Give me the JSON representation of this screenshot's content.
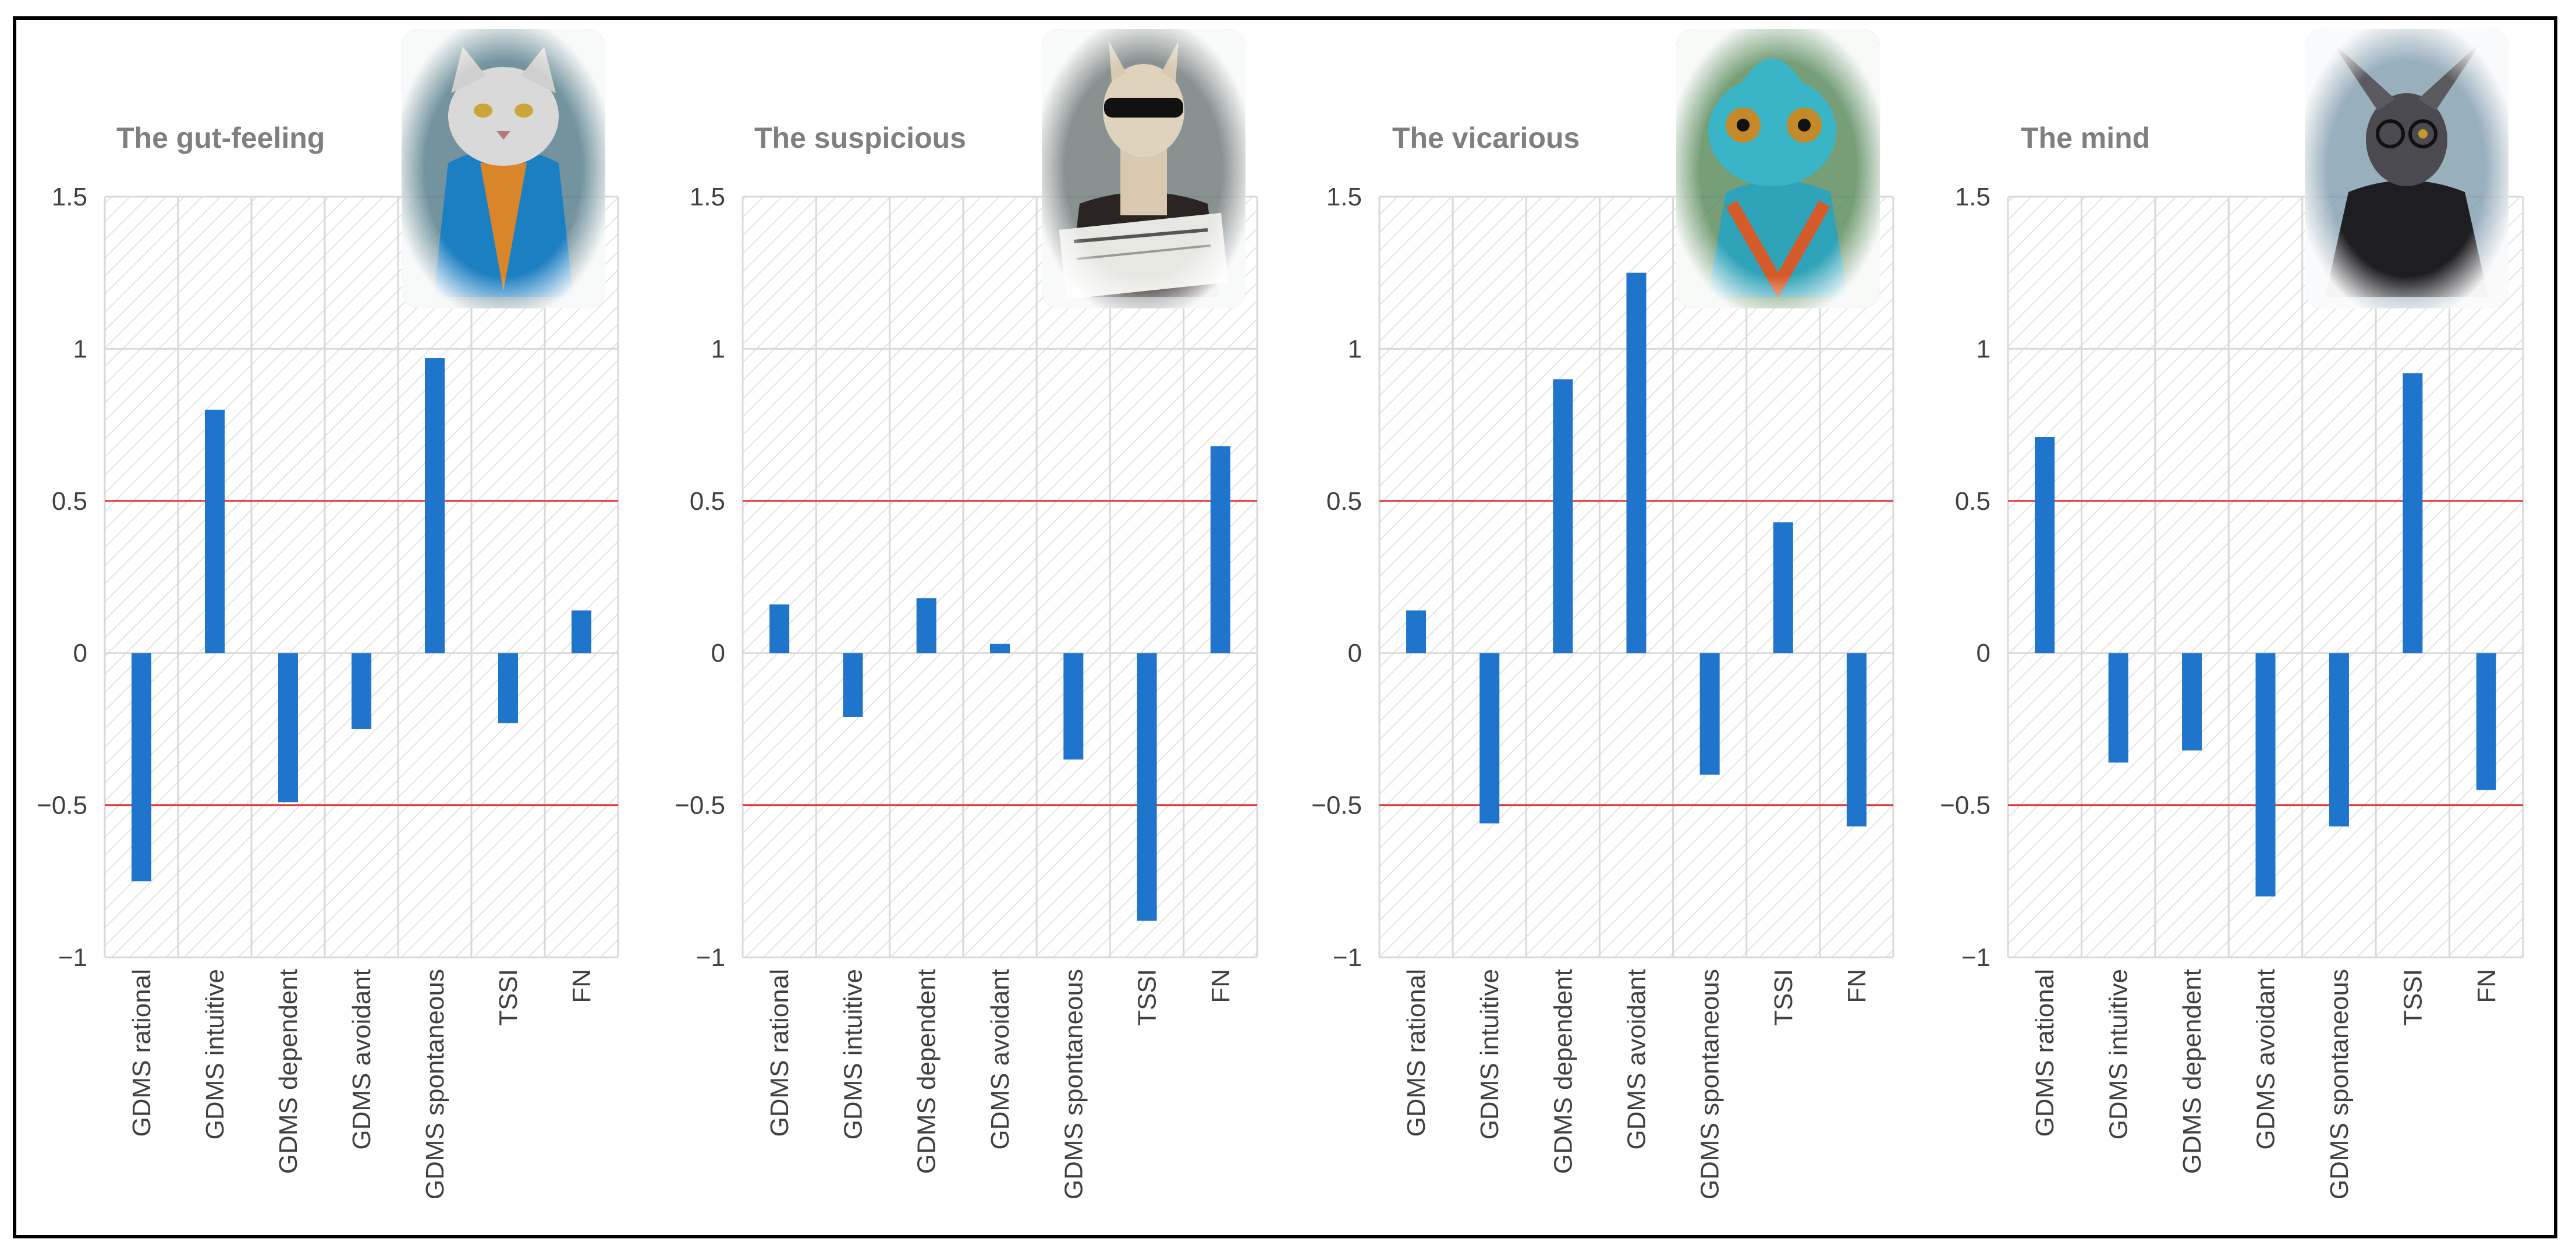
{
  "chart_data": [
    {
      "type": "bar",
      "title": "The gut-feeling",
      "mascot": "cat-wizard-icon",
      "categories": [
        "GDMS rational",
        "GDMS intuitive",
        "GDMS dependent",
        "GDMS avoidant",
        "GDMS spontaneous",
        "TSSI",
        "FN"
      ],
      "values": [
        -0.75,
        0.8,
        -0.49,
        -0.25,
        0.97,
        -0.23,
        0.14
      ],
      "ylim": [
        -1,
        1.5
      ],
      "yticks": [
        "−1",
        "−0.5",
        "0",
        "0.5",
        "1",
        "1.5"
      ],
      "ytick_values": [
        -1,
        -0.5,
        0,
        0.5,
        1,
        1.5
      ],
      "reference_lines": [
        0.5,
        -0.5
      ],
      "grid": true
    },
    {
      "type": "bar",
      "title": "The suspicious",
      "mascot": "llama-newspaper-icon",
      "categories": [
        "GDMS rational",
        "GDMS intuitive",
        "GDMS dependent",
        "GDMS avoidant",
        "GDMS spontaneous",
        "TSSI",
        "FN"
      ],
      "values": [
        0.16,
        -0.21,
        0.18,
        0.03,
        -0.35,
        -0.88,
        0.68
      ],
      "ylim": [
        -1,
        1.5
      ],
      "yticks": [
        "−1",
        "−0.5",
        "0",
        "0.5",
        "1",
        "1.5"
      ],
      "ytick_values": [
        -1,
        -0.5,
        0,
        0.5,
        1,
        1.5
      ],
      "reference_lines": [
        0.5,
        -0.5
      ],
      "grid": true
    },
    {
      "type": "bar",
      "title": "The vicarious",
      "mascot": "chameleon-icon",
      "categories": [
        "GDMS rational",
        "GDMS intuitive",
        "GDMS dependent",
        "GDMS avoidant",
        "GDMS spontaneous",
        "TSSI",
        "FN"
      ],
      "values": [
        0.14,
        -0.56,
        0.9,
        1.25,
        -0.4,
        0.43,
        -0.57
      ],
      "ylim": [
        -1,
        1.5
      ],
      "yticks": [
        "−1",
        "−0.5",
        "0",
        "0.5",
        "1",
        "1.5"
      ],
      "ytick_values": [
        -1,
        -0.5,
        0,
        0.5,
        1,
        1.5
      ],
      "reference_lines": [
        0.5,
        -0.5
      ],
      "grid": true
    },
    {
      "type": "bar",
      "title": "The mind",
      "mascot": "bat-cloak-icon",
      "categories": [
        "GDMS rational",
        "GDMS intuitive",
        "GDMS dependent",
        "GDMS avoidant",
        "GDMS spontaneous",
        "TSSI",
        "FN"
      ],
      "values": [
        0.71,
        -0.36,
        -0.32,
        -0.8,
        -0.57,
        0.92,
        -0.45
      ],
      "ylim": [
        -1,
        1.5
      ],
      "yticks": [
        "−1",
        "−0.5",
        "0",
        "0.5",
        "1",
        "1.5"
      ],
      "ytick_values": [
        -1,
        -0.5,
        0,
        0.5,
        1,
        1.5
      ],
      "reference_lines": [
        0.5,
        -0.5
      ],
      "grid": true
    }
  ],
  "colors": {
    "bar": "#1f74cc",
    "reference_line": "#e8393a",
    "grid": "#d9d9d9",
    "hatch": "#dcdcdc",
    "frame": "#000000"
  }
}
